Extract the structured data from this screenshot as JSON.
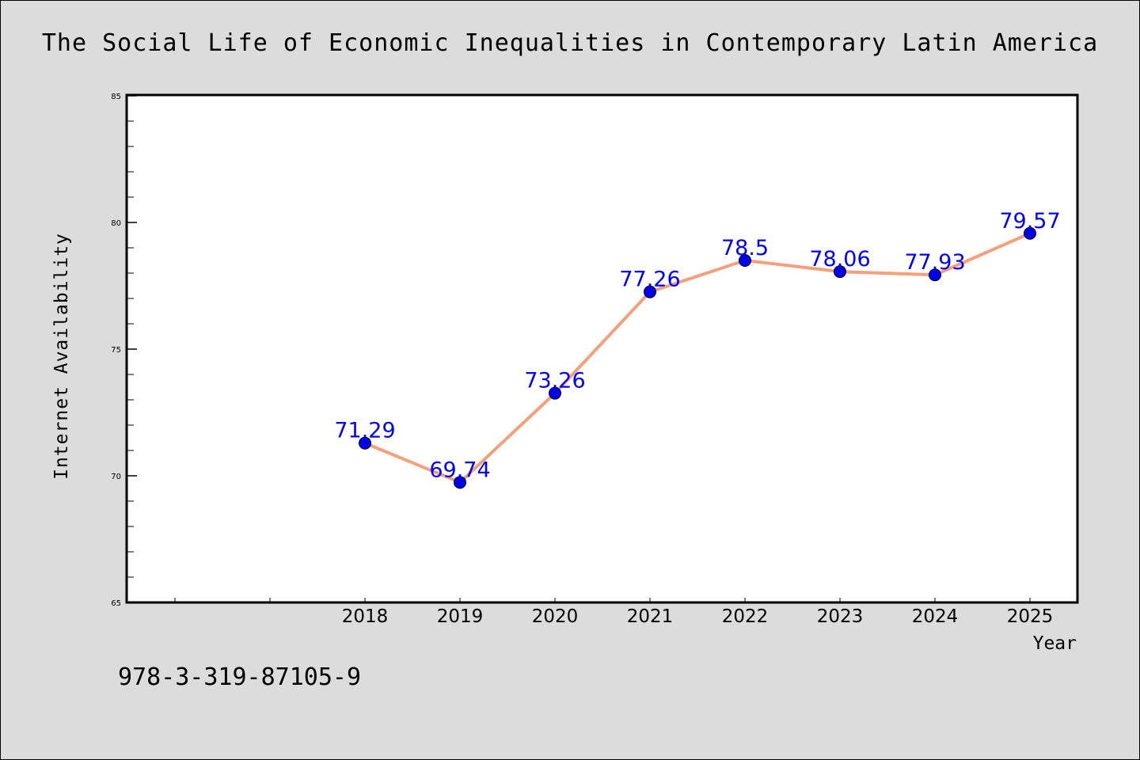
{
  "chart_data": {
    "type": "line",
    "title": "The Social Life of Economic Inequalities in Contemporary Latin America",
    "xlabel": "Year",
    "ylabel": "Internet Availability",
    "x": [
      "2018",
      "2019",
      "2020",
      "2021",
      "2022",
      "2023",
      "2024",
      "2025"
    ],
    "values": [
      71.29,
      69.74,
      73.26,
      77.26,
      78.5,
      78.06,
      77.93,
      79.57
    ],
    "data_labels": [
      "71.29",
      "69.74",
      "73.26",
      "77.26",
      "78.5",
      "78.06",
      "77.93",
      "79.57"
    ],
    "ylim": [
      65,
      85
    ],
    "yticks": [
      "65",
      "70",
      "75",
      "80",
      "85"
    ],
    "grid": false,
    "line_color": "#f4a07a",
    "marker_color": "#0000ee",
    "label_color": "#0000ff"
  },
  "footer": {
    "isbn": "978-3-319-87105-9"
  }
}
